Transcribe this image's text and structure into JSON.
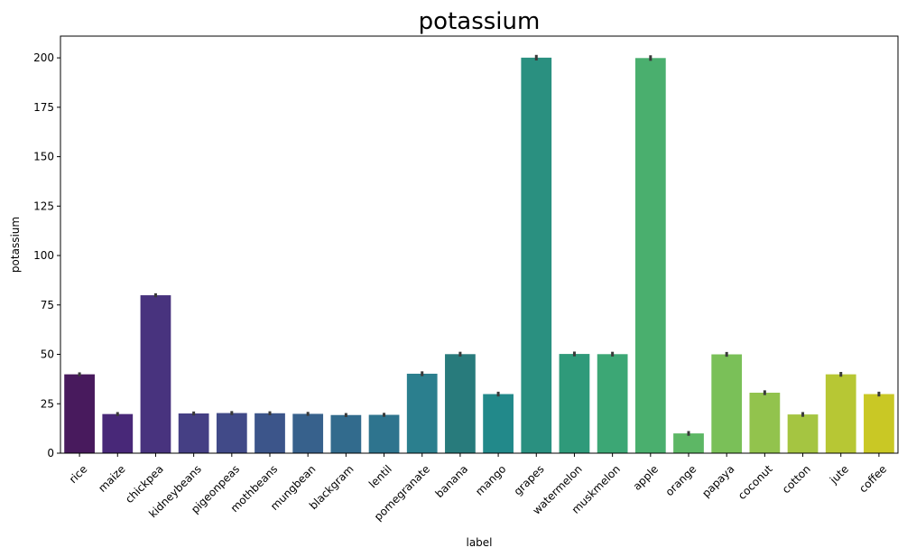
{
  "chart_data": {
    "type": "bar",
    "title": "potassium",
    "xlabel": "label",
    "ylabel": "potassium",
    "ylim": [
      0,
      211
    ],
    "yticks": [
      0,
      25,
      50,
      75,
      100,
      125,
      150,
      175,
      200
    ],
    "grid": false,
    "legend": "none",
    "error_bars": true,
    "categories": [
      "rice",
      "maize",
      "chickpea",
      "kidneybeans",
      "pigeonpeas",
      "mothbeans",
      "mungbean",
      "blackgram",
      "lentil",
      "pomegranate",
      "banana",
      "mango",
      "grapes",
      "watermelon",
      "muskmelon",
      "apple",
      "orange",
      "papaya",
      "coconut",
      "cotton",
      "jute",
      "coffee"
    ],
    "values": [
      39.9,
      19.8,
      79.9,
      20.1,
      20.3,
      20.2,
      19.9,
      19.3,
      19.4,
      40.2,
      50.1,
      29.9,
      200.1,
      50.2,
      50.1,
      199.9,
      10.0,
      50.0,
      30.6,
      19.6,
      39.9,
      29.9
    ],
    "errors": [
      1.0,
      1.0,
      1.0,
      1.0,
      1.0,
      1.0,
      1.0,
      1.0,
      1.0,
      1.2,
      1.2,
      1.2,
      1.4,
      1.2,
      1.2,
      1.4,
      1.2,
      1.2,
      1.2,
      1.2,
      1.2,
      1.2
    ],
    "colors": [
      "#481a5d",
      "#482878",
      "#48337e",
      "#453f84",
      "#414a88",
      "#3c558a",
      "#37618c",
      "#326b8d",
      "#2e748e",
      "#2b7f8e",
      "#287b7c",
      "#22898a",
      "#2a9080",
      "#2f9a7a",
      "#3ca775",
      "#4aaf6e",
      "#5db765",
      "#7ac058",
      "#92c34d",
      "#a5c541",
      "#b7c734",
      "#c9c825"
    ],
    "error_color": "#3a3a3a"
  }
}
